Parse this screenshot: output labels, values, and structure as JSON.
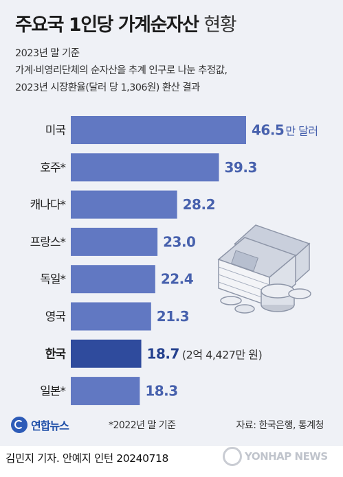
{
  "header": {
    "title": "주요국 1인당 가계순자산",
    "title_suffix": "현황",
    "subtitle_lines": [
      "2023년 말 기준",
      "가계·비영리단체의 순자산을 추계 인구로 나눈 추정값,",
      "2023년 시장환율(달러 당 1,306원) 환산 결과"
    ]
  },
  "chart_data": {
    "type": "bar",
    "orientation": "horizontal",
    "categories": [
      "미국",
      "호주*",
      "캐나다*",
      "프랑스*",
      "독일*",
      "영국",
      "한국",
      "일본*"
    ],
    "values": [
      46.5,
      39.3,
      28.2,
      23.0,
      22.4,
      21.3,
      18.7,
      18.3
    ],
    "value_labels": [
      "46.5",
      "39.3",
      "28.2",
      "23.0",
      "22.4",
      "21.3",
      "18.7",
      "18.3"
    ],
    "unit": "만 달러",
    "highlight_category": "한국",
    "highlight_note": "(2억 4,427만 원)",
    "colors": {
      "bar": "#6178c2",
      "highlight_bar": "#2f4b9d",
      "value_text": "#4761ad"
    },
    "grid": false
  },
  "illustration": {
    "icon": "money-stack-coins-icon"
  },
  "footer": {
    "logo_text": "연합뉴스",
    "footnote": "*2022년 말 기준",
    "source": "자료: 한국은행, 통계청",
    "credit": "김민지 기자. 안예지 인턴  20240718",
    "watermark": "YONHAP NEWS"
  }
}
